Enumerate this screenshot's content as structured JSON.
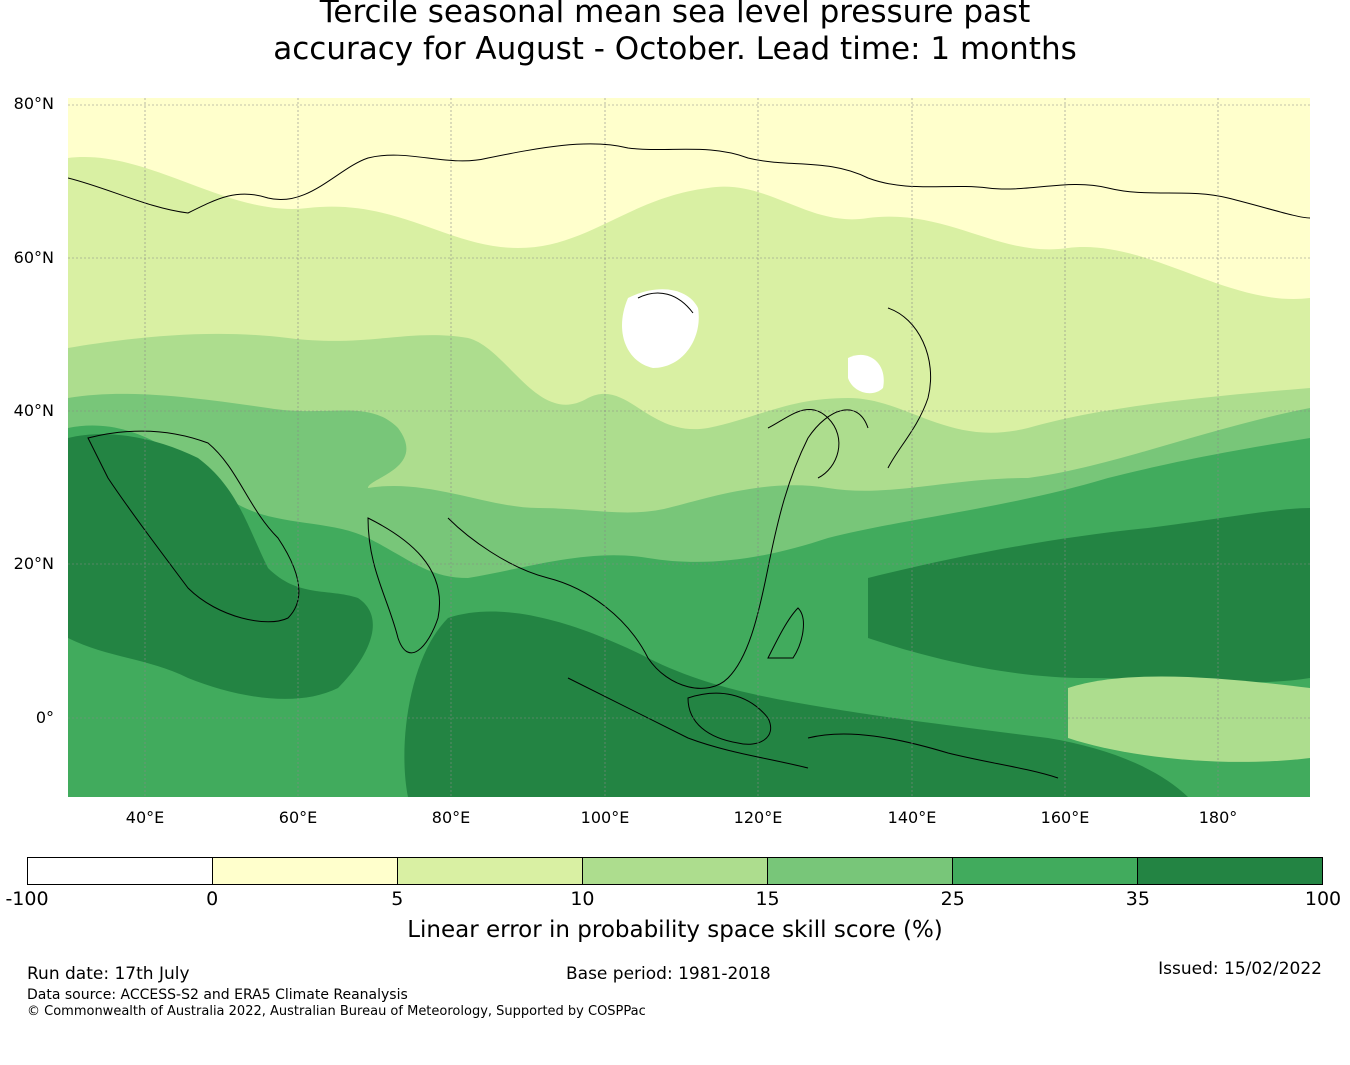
{
  "title": {
    "line1": "Tercile seasonal mean sea level pressure past",
    "line2": "accuracy for August - October. Lead time: 1 months"
  },
  "map": {
    "lat_labels": [
      "80°N",
      "60°N",
      "40°N",
      "20°N",
      "0°"
    ],
    "lon_labels": [
      "40°E",
      "60°E",
      "80°E",
      "100°E",
      "120°E",
      "140°E",
      "160°E",
      "180°"
    ]
  },
  "colorbar": {
    "ticks": [
      "-100",
      "0",
      "5",
      "10",
      "15",
      "25",
      "35",
      "100"
    ],
    "colors": [
      "#ffffff",
      "#ffffcc",
      "#d9f0a3",
      "#addd8e",
      "#78c679",
      "#41ab5d",
      "#238443"
    ],
    "label": "Linear error in probability space skill score (%)"
  },
  "footer": {
    "run_date": "Run date: 17th July",
    "base_period": "Base period: 1981-2018",
    "issued": "Issued: 15/02/2022",
    "data_source": "Data source: ACCESS-S2 and ERA5 Climate Reanalysis",
    "copyright": "© Commonwealth of Australia 2022, Australian Bureau of Meteorology, Supported by COSPPac"
  }
}
